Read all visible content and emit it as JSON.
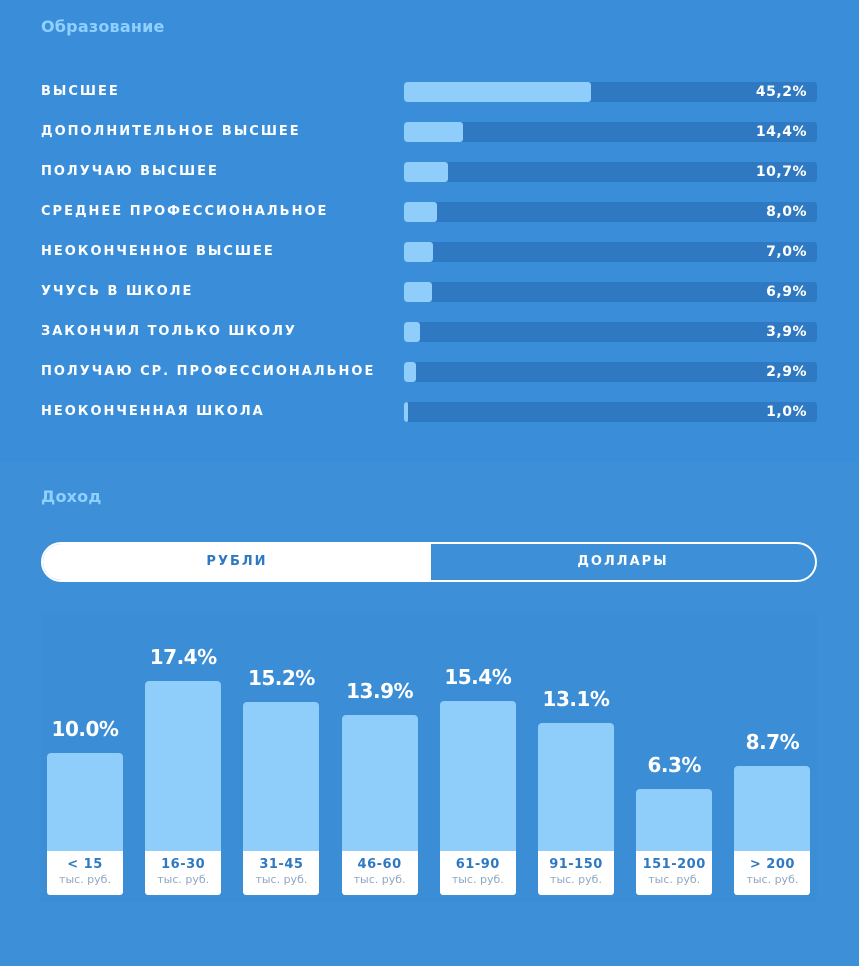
{
  "education": {
    "title": "Образование",
    "rows": [
      {
        "label": "высшее",
        "value": "45,2%",
        "pct": 45.2
      },
      {
        "label": "дополнительное высшее",
        "value": "14,4%",
        "pct": 14.4
      },
      {
        "label": "получаю высшее",
        "value": "10,7%",
        "pct": 10.7
      },
      {
        "label": "среднее профессиональное",
        "value": "8,0%",
        "pct": 8.0
      },
      {
        "label": "неоконченное высшее",
        "value": "7,0%",
        "pct": 7.0
      },
      {
        "label": "учусь в школе",
        "value": "6,9%",
        "pct": 6.9
      },
      {
        "label": "закончил только школу",
        "value": "3,9%",
        "pct": 3.9
      },
      {
        "label": "получаю ср. профессиональное",
        "value": "2,9%",
        "pct": 2.9
      },
      {
        "label": "неоконченная школа",
        "value": "1,0%",
        "pct": 1.0
      }
    ]
  },
  "income": {
    "title": "Доход",
    "toggle": {
      "rub_label": "рубли",
      "usd_label": "доллары",
      "selected": "rub"
    }
  },
  "colors": {
    "background": "#3d8fd8",
    "bar_fill": "#8fcdfb",
    "bar_track": "#2f79c2",
    "title": "#8fd0ff",
    "label_text": "#2f79c2"
  },
  "chart_data": [
    {
      "type": "bar",
      "categories": [
        "высшее",
        "дополнительное высшее",
        "получаю высшее",
        "среднее профессиональное",
        "неоконченное высшее",
        "учусь в школе",
        "закончил только школу",
        "получаю ср. профессиональное",
        "неоконченная школа"
      ],
      "values": [
        45.2,
        14.4,
        10.7,
        8.0,
        7.0,
        6.9,
        3.9,
        2.9,
        1.0
      ],
      "title": "Образование",
      "orientation": "horizontal",
      "xlim": [
        0,
        100
      ]
    },
    {
      "type": "bar",
      "categories": [
        "< 15",
        "16-30",
        "31-45",
        "46-60",
        "61-90",
        "91-150",
        "151-200",
        "> 200"
      ],
      "category_unit": "тыс. руб.",
      "values": [
        10.0,
        17.4,
        15.2,
        13.9,
        15.4,
        13.1,
        6.3,
        8.7
      ],
      "value_labels": [
        "10.0%",
        "17.4%",
        "15.2%",
        "13.9%",
        "15.4%",
        "13.1%",
        "6.3%",
        "8.7%"
      ],
      "title": "Доход",
      "grid": false
    }
  ]
}
